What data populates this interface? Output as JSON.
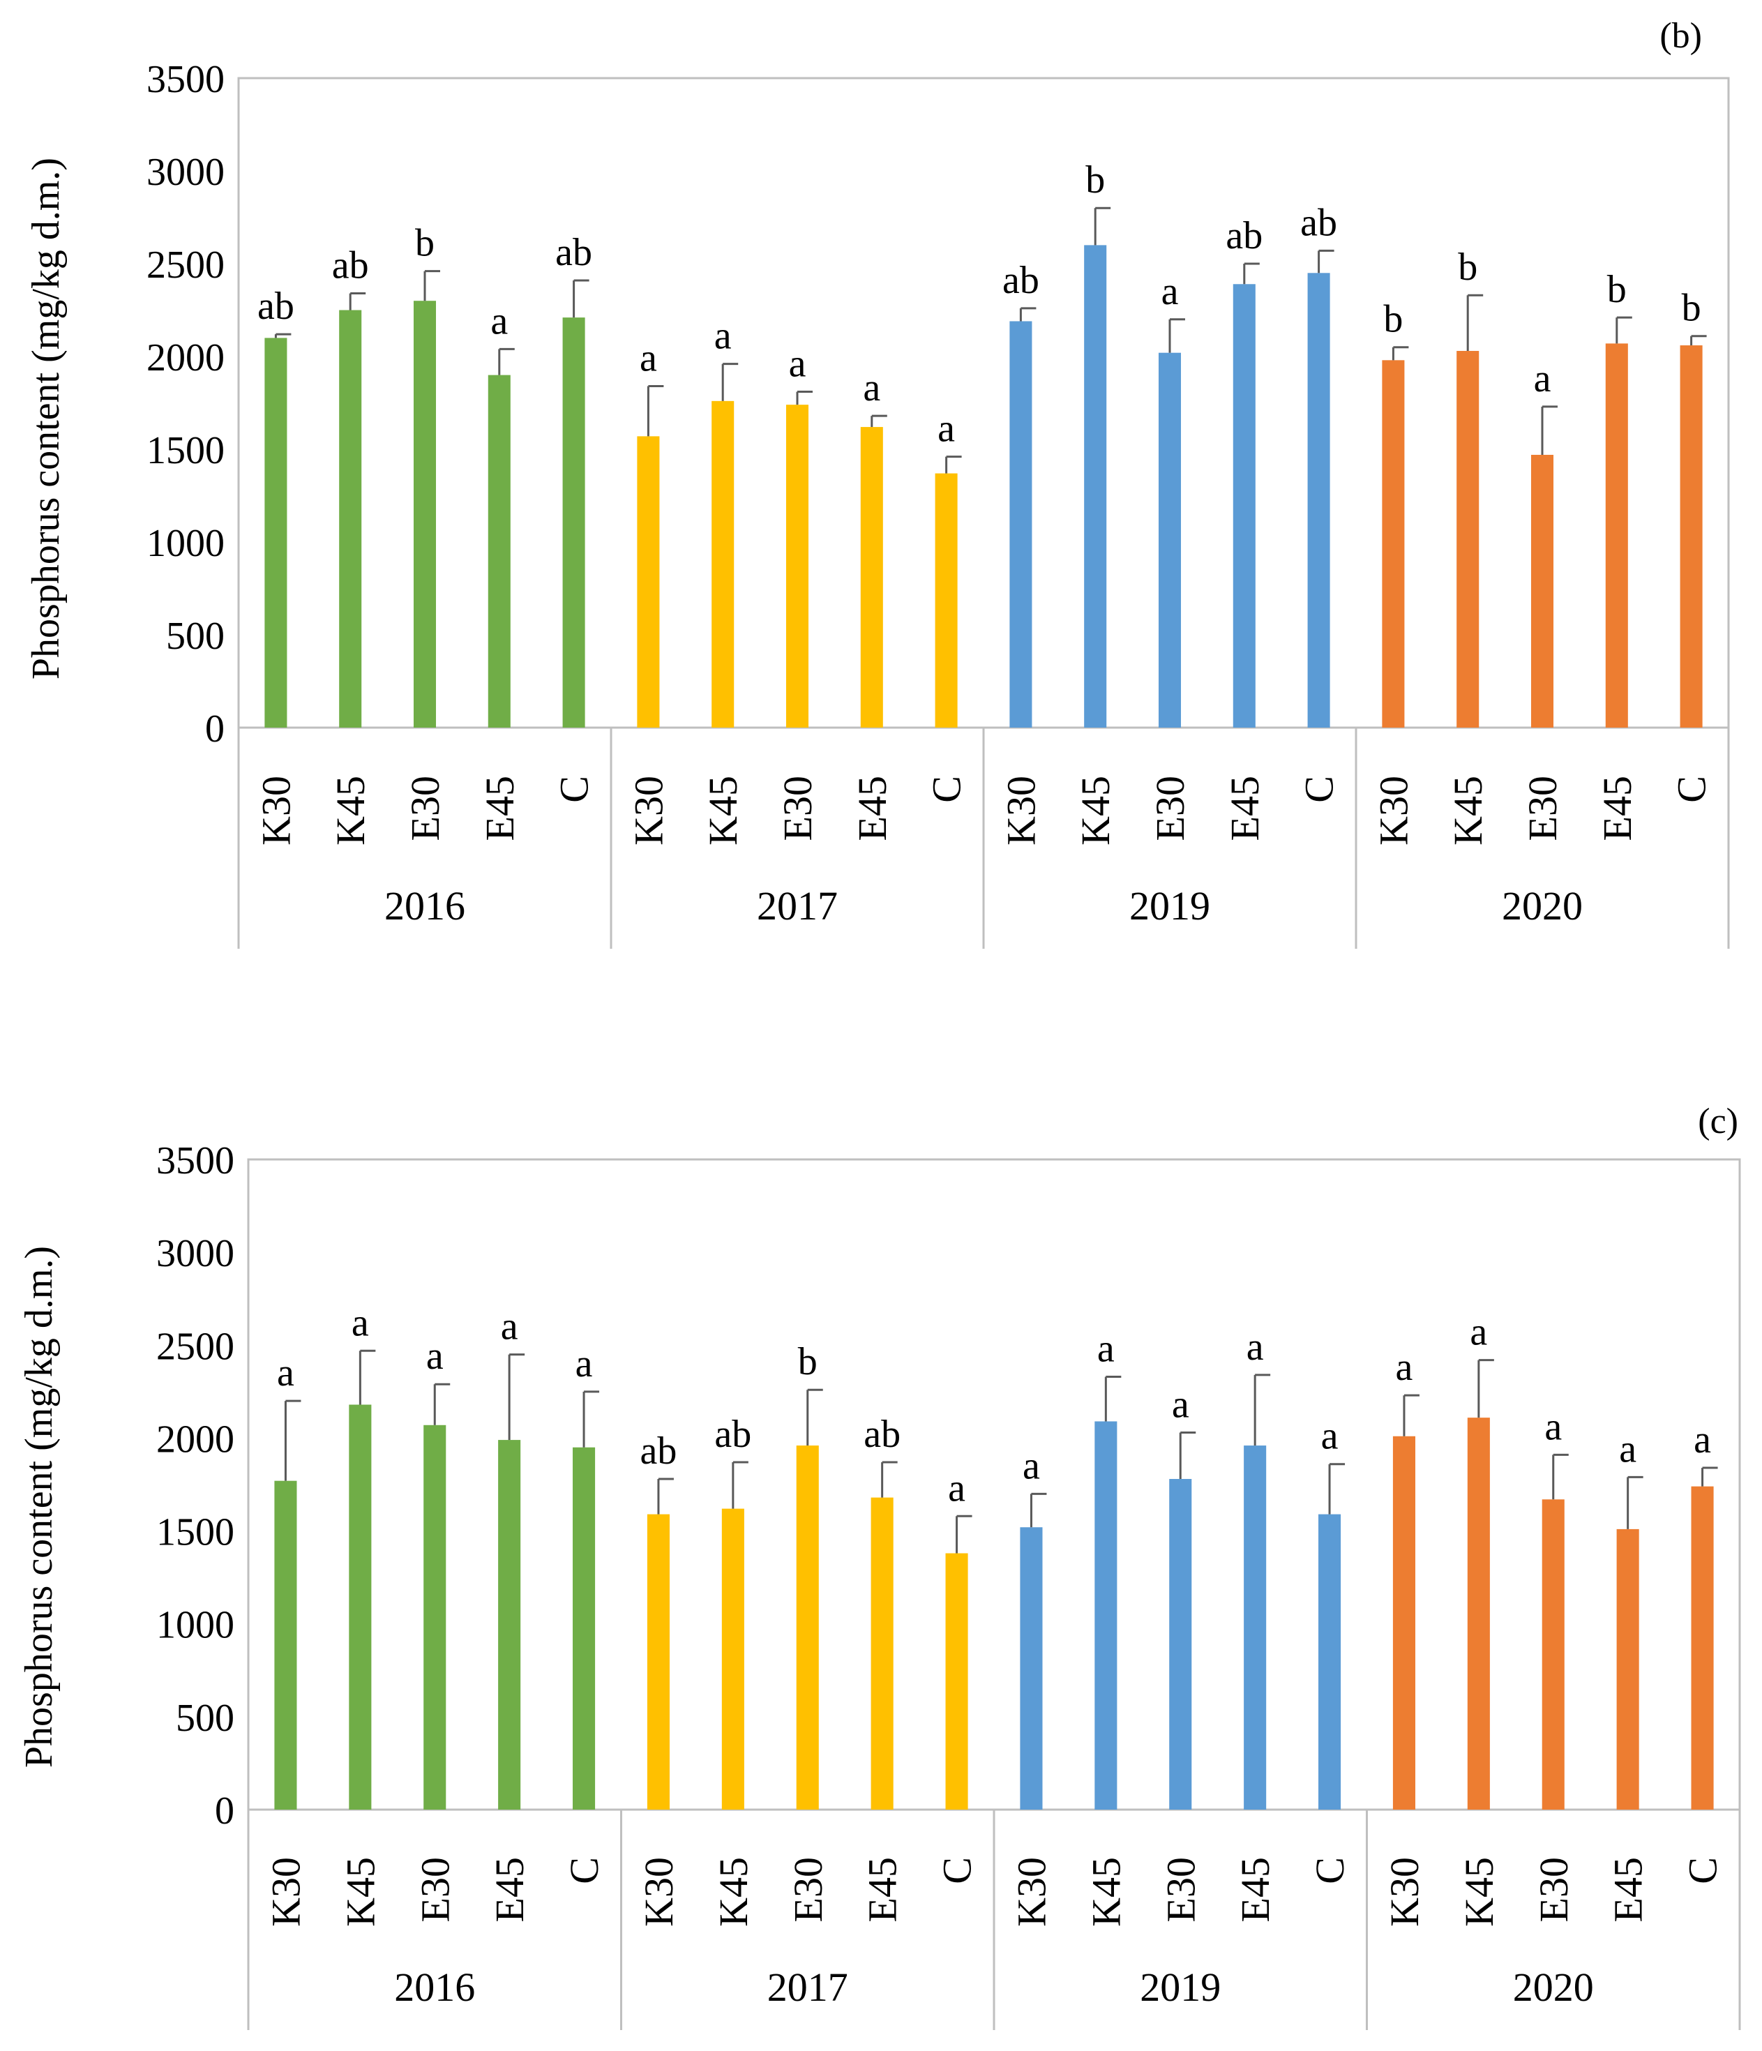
{
  "charts": [
    {
      "panel_label": "(b)",
      "ylabel": "Phosphorus content (mg/kg d.m.)",
      "ytick_labels": [
        "0",
        "500",
        "1000",
        "1500",
        "2000",
        "2500",
        "3000",
        "3500"
      ],
      "groups": [
        "2016",
        "2017",
        "2019",
        "2020"
      ],
      "categories": [
        "K30",
        "K45",
        "E30",
        "E45",
        "C"
      ]
    },
    {
      "panel_label": "(c)",
      "ylabel": "Phosphorus content (mg/kg d.m.)",
      "ytick_labels": [
        "0",
        "500",
        "1000",
        "1500",
        "2000",
        "2500",
        "3000",
        "3500"
      ],
      "groups": [
        "2016",
        "2017",
        "2019",
        "2020"
      ],
      "categories": [
        "K30",
        "K45",
        "E30",
        "E45",
        "C"
      ]
    }
  ],
  "chart_data": [
    {
      "type": "bar",
      "title": "(b)",
      "xlabel": "",
      "ylabel": "Phosphorus content (mg/kg d.m.)",
      "ylim": [
        0,
        3500
      ],
      "yticks": [
        0,
        500,
        1000,
        1500,
        2000,
        2500,
        3000,
        3500
      ],
      "grid": false,
      "categories": [
        "K30",
        "K45",
        "E30",
        "E45",
        "C"
      ],
      "series": [
        {
          "name": "2016",
          "color": "#70AD47",
          "values": [
            2100,
            2250,
            2300,
            1900,
            2210
          ],
          "errors": [
            20,
            90,
            160,
            140,
            200
          ],
          "letters": [
            "ab",
            "ab",
            "b",
            "a",
            "ab"
          ]
        },
        {
          "name": "2017",
          "color": "#FFC000",
          "values": [
            1570,
            1760,
            1740,
            1620,
            1370
          ],
          "errors": [
            270,
            200,
            70,
            60,
            90
          ],
          "letters": [
            "a",
            "a",
            "a",
            "a",
            "a"
          ]
        },
        {
          "name": "2019",
          "color": "#5B9BD5",
          "values": [
            2190,
            2600,
            2020,
            2390,
            2450
          ],
          "errors": [
            70,
            200,
            180,
            110,
            120
          ],
          "letters": [
            "ab",
            "b",
            "a",
            "ab",
            "ab"
          ]
        },
        {
          "name": "2020",
          "color": "#ED7D31",
          "values": [
            1980,
            2030,
            1470,
            2070,
            2060
          ],
          "errors": [
            70,
            300,
            260,
            140,
            50
          ],
          "letters": [
            "b",
            "b",
            "a",
            "b",
            "b"
          ]
        }
      ]
    },
    {
      "type": "bar",
      "title": "(c)",
      "xlabel": "",
      "ylabel": "Phosphorus content (mg/kg d.m.)",
      "ylim": [
        0,
        3500
      ],
      "yticks": [
        0,
        500,
        1000,
        1500,
        2000,
        2500,
        3000,
        3500
      ],
      "grid": false,
      "categories": [
        "K30",
        "K45",
        "E30",
        "E45",
        "C"
      ],
      "series": [
        {
          "name": "2016",
          "color": "#70AD47",
          "values": [
            1770,
            2180,
            2070,
            1990,
            1950
          ],
          "errors": [
            430,
            290,
            220,
            460,
            300
          ],
          "letters": [
            "a",
            "a",
            "a",
            "a",
            "a"
          ]
        },
        {
          "name": "2017",
          "color": "#FFC000",
          "values": [
            1590,
            1620,
            1960,
            1680,
            1380
          ],
          "errors": [
            190,
            250,
            300,
            190,
            200
          ],
          "letters": [
            "ab",
            "ab",
            "b",
            "ab",
            "a"
          ]
        },
        {
          "name": "2019",
          "color": "#5B9BD5",
          "values": [
            1520,
            2090,
            1780,
            1960,
            1590
          ],
          "errors": [
            180,
            240,
            250,
            380,
            270
          ],
          "letters": [
            "a",
            "a",
            "a",
            "a",
            "a"
          ]
        },
        {
          "name": "2020",
          "color": "#ED7D31",
          "values": [
            2010,
            2110,
            1670,
            1510,
            1740
          ],
          "errors": [
            220,
            310,
            240,
            280,
            100
          ],
          "letters": [
            "a",
            "a",
            "a",
            "a",
            "a"
          ]
        }
      ]
    }
  ]
}
